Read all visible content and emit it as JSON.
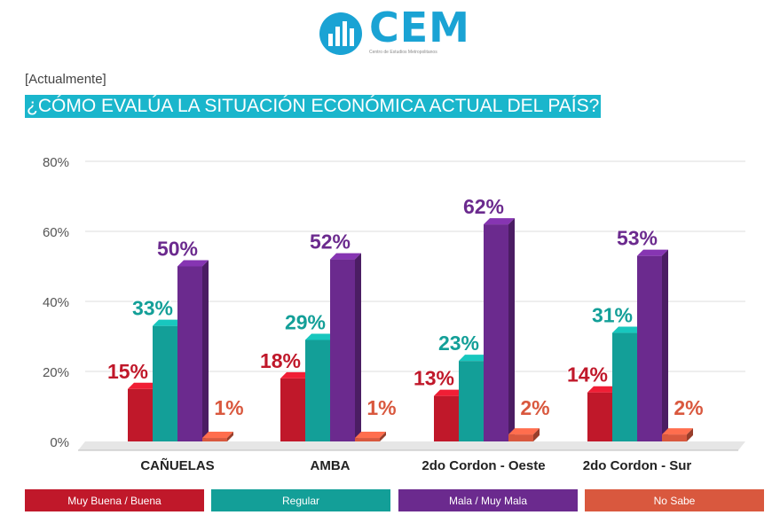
{
  "header": {
    "logo_text": "CEM",
    "logo_subtitle": "Centro de Estudios Metropolitanos",
    "context": "[Actualmente]",
    "question": "¿CÓMO EVALÚA LA SITUACIÓN ECONÓMICA ACTUAL DEL PAÍS?"
  },
  "colors": {
    "accent": "#1ab6cc",
    "logo": "#1aa3d4"
  },
  "chart_data": {
    "type": "bar",
    "title": "¿CÓMO EVALÚA LA SITUACIÓN ECONÓMICA ACTUAL DEL PAÍS?",
    "categories": [
      "CAÑUELAS",
      "AMBA",
      "2do Cordon - Oeste",
      "2do Cordon - Sur"
    ],
    "series": [
      {
        "name": "Muy Buena / Buena",
        "color": "#c0182a",
        "values": [
          15,
          18,
          13,
          14
        ],
        "labels": [
          "15%",
          "18%",
          "13%",
          "14%"
        ]
      },
      {
        "name": "Regular",
        "color": "#139f98",
        "values": [
          33,
          29,
          23,
          31
        ],
        "labels": [
          "33%",
          "29%",
          "23%",
          "31%"
        ]
      },
      {
        "name": "Mala / Muy Mala",
        "color": "#6b2a8e",
        "values": [
          50,
          52,
          62,
          53
        ],
        "labels": [
          "50%",
          "52%",
          "62%",
          "53%"
        ]
      },
      {
        "name": "No Sabe",
        "color": "#d9583e",
        "values": [
          1,
          1,
          2,
          2
        ],
        "labels": [
          "1%",
          "1%",
          "2%",
          "2%"
        ]
      }
    ],
    "ylim": [
      0,
      80
    ],
    "yticks": [
      "0%",
      "20%",
      "40%",
      "60%",
      "80%"
    ],
    "grid": true,
    "legend_position": "bottom"
  }
}
